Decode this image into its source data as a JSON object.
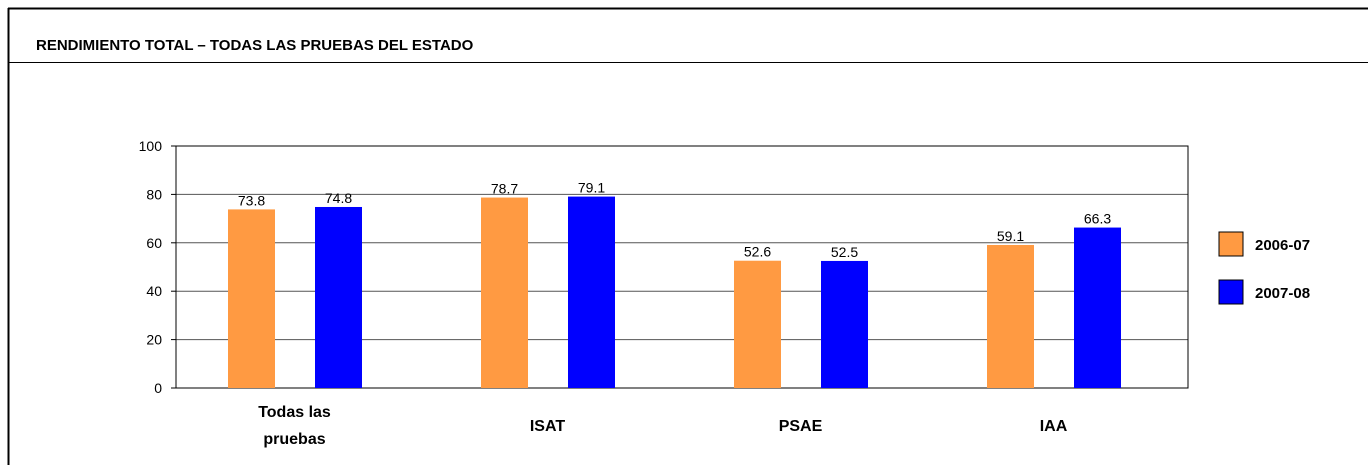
{
  "chart_data": {
    "type": "bar",
    "title": "RENDIMIENTO TOTAL – TODAS LAS PRUEBAS DEL ESTADO",
    "categories": [
      "Todas las pruebas",
      "ISAT",
      "PSAE",
      "IAA"
    ],
    "series": [
      {
        "name": "2006-07",
        "color": "#ff9a42",
        "values": [
          73.8,
          78.7,
          52.6,
          59.1
        ]
      },
      {
        "name": "2007-08",
        "color": "#0000ff",
        "values": [
          74.8,
          79.1,
          52.5,
          66.3
        ]
      }
    ],
    "ylim": [
      0,
      100
    ],
    "yticks": [
      0,
      20,
      40,
      60,
      80,
      100
    ],
    "grid": true,
    "legend": "right"
  }
}
